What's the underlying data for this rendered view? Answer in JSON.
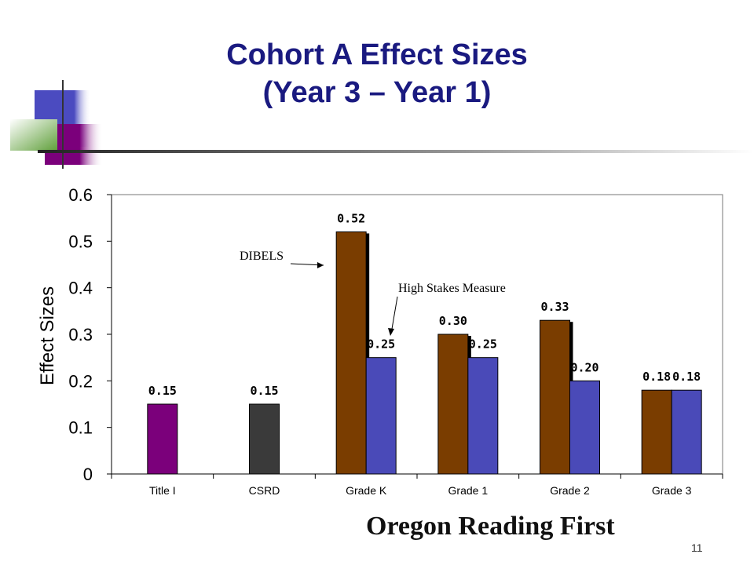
{
  "slide": {
    "title_line1": "Cohort A Effect Sizes",
    "title_line2": "(Year 3 – Year 1)",
    "footer_brand": "Oregon Reading First",
    "page_number": "11"
  },
  "colors": {
    "title": "#1a1a80",
    "dibels": "#7a3d00",
    "high_stakes": "#4a4ab8",
    "title_i": "#7b007b",
    "csrd": "#3a3a3a",
    "deco_blue": "#4b4bc0",
    "deco_purple": "#7b007b",
    "deco_green": "#5f9f3a"
  },
  "chart_data": {
    "type": "bar",
    "title": "",
    "xlabel": "",
    "ylabel": "Effect Sizes",
    "ylim": [
      0,
      0.6
    ],
    "yticks": [
      "0",
      "0.1",
      "0.2",
      "0.3",
      "0.4",
      "0.5",
      "0.6"
    ],
    "grid": false,
    "legend": "none",
    "categories": [
      "Title I",
      "CSRD",
      "Grade K",
      "Grade 1",
      "Grade 2",
      "Grade 3"
    ],
    "bars": [
      {
        "category": 0,
        "slot": "single",
        "value": 0.15,
        "label": "0.15",
        "color_key": "title_i"
      },
      {
        "category": 1,
        "slot": "single",
        "value": 0.15,
        "label": "0.15",
        "color_key": "csrd"
      },
      {
        "category": 2,
        "slot": "left",
        "value": 0.52,
        "label": "0.52",
        "color_key": "dibels"
      },
      {
        "category": 2,
        "slot": "right",
        "value": 0.25,
        "label": "0.25",
        "color_key": "high_stakes"
      },
      {
        "category": 3,
        "slot": "left",
        "value": 0.3,
        "label": "0.30",
        "color_key": "dibels"
      },
      {
        "category": 3,
        "slot": "right",
        "value": 0.25,
        "label": "0.25",
        "color_key": "high_stakes"
      },
      {
        "category": 4,
        "slot": "left",
        "value": 0.33,
        "label": "0.33",
        "color_key": "dibels"
      },
      {
        "category": 4,
        "slot": "right",
        "value": 0.2,
        "label": "0.20",
        "color_key": "high_stakes"
      },
      {
        "category": 5,
        "slot": "left",
        "value": 0.18,
        "label": "0.18",
        "color_key": "dibels"
      },
      {
        "category": 5,
        "slot": "right",
        "value": 0.18,
        "label": "0.18",
        "color_key": "high_stakes"
      }
    ],
    "annotations": [
      {
        "text": "DIBELS",
        "points_to": "Grade K DIBELS bar"
      },
      {
        "text": "High Stakes Measure",
        "points_to": "Grade K High Stakes Measure bar"
      }
    ]
  }
}
